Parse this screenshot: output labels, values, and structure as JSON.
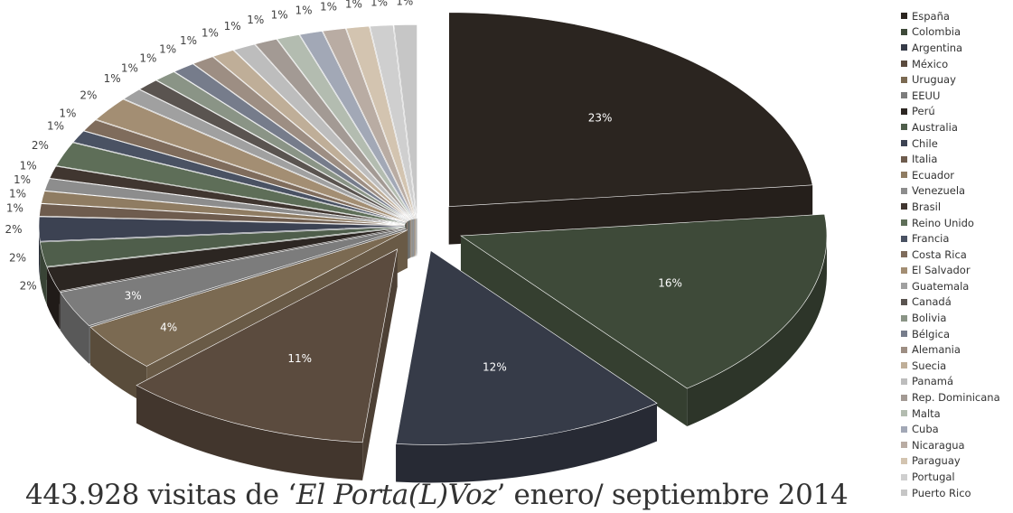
{
  "chart_data": {
    "type": "pie",
    "style": "3d-exploded",
    "caption_parts": [
      "443.928 visitas de ‘",
      "El Porta(L)Voz",
      "’ enero/ septiembre 2014"
    ],
    "legend_position": "right",
    "slices": [
      {
        "name": "España",
        "value": 23,
        "label": "23%",
        "color": "#2b2520"
      },
      {
        "name": "Colombia",
        "value": 16,
        "label": "16%",
        "color": "#3e4a39"
      },
      {
        "name": "Argentina",
        "value": 12,
        "label": "12%",
        "color": "#363b48"
      },
      {
        "name": "México",
        "value": 11,
        "label": "11%",
        "color": "#5b4b3e"
      },
      {
        "name": "Uruguay",
        "value": 4,
        "label": "4%",
        "color": "#7b6a52"
      },
      {
        "name": "EEUU",
        "value": 3,
        "label": "3%",
        "color": "#7c7c7c"
      },
      {
        "name": "Perú",
        "value": 2,
        "label": "2%",
        "color": "#2c2622"
      },
      {
        "name": "Australia",
        "value": 2,
        "label": "2%",
        "color": "#4f5e4b"
      },
      {
        "name": "Chile",
        "value": 2,
        "label": "2%",
        "color": "#3c4252"
      },
      {
        "name": "Italia",
        "value": 1,
        "label": "1%",
        "color": "#6e5c4e"
      },
      {
        "name": "Ecuador",
        "value": 1,
        "label": "1%",
        "color": "#8f7c62"
      },
      {
        "name": "Venezuela",
        "value": 1,
        "label": "1%",
        "color": "#8d8d8d"
      },
      {
        "name": "Brasil",
        "value": 1,
        "label": "1%",
        "color": "#403630"
      },
      {
        "name": "Reino Unido",
        "value": 2,
        "label": "2%",
        "color": "#5e6e58"
      },
      {
        "name": "Francia",
        "value": 1,
        "label": "1%",
        "color": "#4a5263"
      },
      {
        "name": "Costa Rica",
        "value": 1,
        "label": "1%",
        "color": "#7f6c5c"
      },
      {
        "name": "El Salvador",
        "value": 2,
        "label": "2%",
        "color": "#a38e73"
      },
      {
        "name": "Guatemala",
        "value": 1,
        "label": "1%",
        "color": "#a0a0a0"
      },
      {
        "name": "Canadá",
        "value": 1,
        "label": "1%",
        "color": "#5a5450"
      },
      {
        "name": "Bolivia",
        "value": 1,
        "label": "1%",
        "color": "#8a9486"
      },
      {
        "name": "Bélgica",
        "value": 1,
        "label": "1%",
        "color": "#767c8b"
      },
      {
        "name": "Alemania",
        "value": 1,
        "label": "1%",
        "color": "#9d8e83"
      },
      {
        "name": "Suecia",
        "value": 1,
        "label": "1%",
        "color": "#bfae98"
      },
      {
        "name": "Panamá",
        "value": 1,
        "label": "1%",
        "color": "#bdbdbd"
      },
      {
        "name": "Rep. Dominicana",
        "value": 1,
        "label": "1%",
        "color": "#a39a94"
      },
      {
        "name": "Malta",
        "value": 1,
        "label": "1%",
        "color": "#b3bcb0"
      },
      {
        "name": "Cuba",
        "value": 1,
        "label": "1%",
        "color": "#a2a8b6"
      },
      {
        "name": "Nicaragua",
        "value": 1,
        "label": "1%",
        "color": "#b9aca3"
      },
      {
        "name": "Paraguay",
        "value": 1,
        "label": "1%",
        "color": "#d3c4b0"
      },
      {
        "name": "Portugal",
        "value": 1,
        "label": "1%",
        "color": "#cfcfcf"
      },
      {
        "name": "Puerto Rico",
        "value": 1,
        "label": "1%",
        "color": "#c6c6c6"
      }
    ]
  }
}
